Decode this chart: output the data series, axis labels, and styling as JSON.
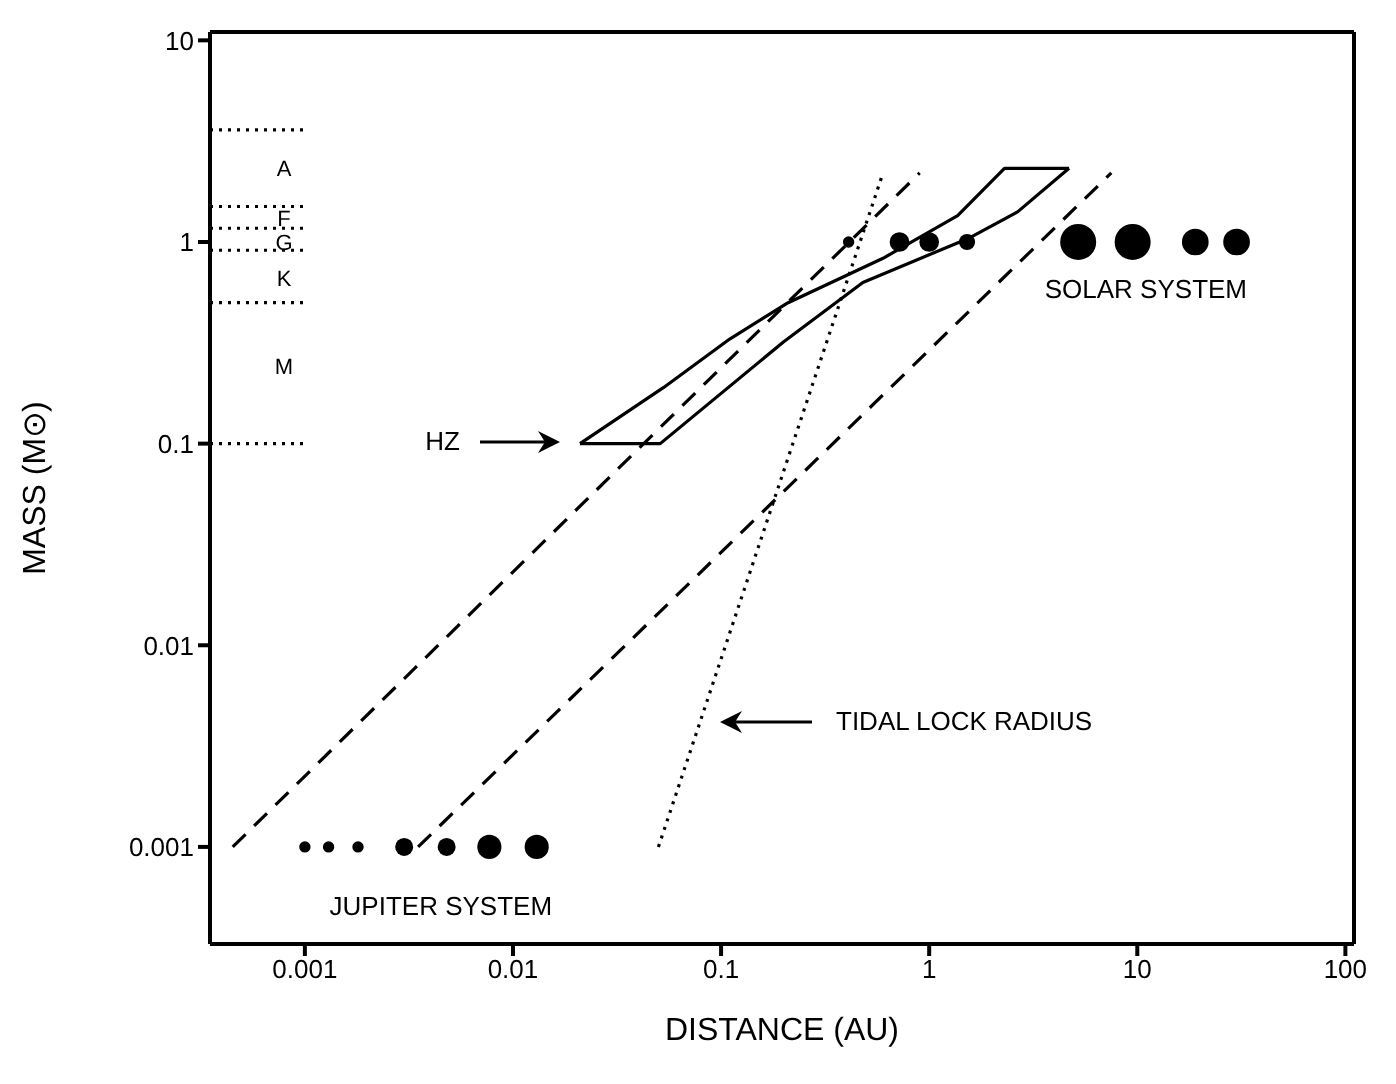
{
  "chart_data": {
    "type": "line",
    "xlabel": "DISTANCE (AU)",
    "ylabel": "MASS (M⊙)",
    "log": "xy",
    "grid": false,
    "xlim": [
      0.00035,
      110
    ],
    "ylim": [
      0.00033,
      11
    ],
    "xticks": [
      0.001,
      0.01,
      0.1,
      1,
      10,
      100
    ],
    "yticks": [
      0.001,
      0.01,
      0.1,
      1,
      10
    ],
    "series": [
      {
        "color": "#000000",
        "line_style": "solid",
        "x": [
          0.021,
          0.051,
          0.2,
          0.48,
          1.57,
          2.66,
          4.7
        ],
        "values": [
          0.1,
          0.1,
          0.32,
          0.63,
          1.05,
          1.41,
          2.32
        ]
      },
      {
        "color": "#000000",
        "line_style": "solid",
        "x": [
          0.021,
          0.053,
          0.11,
          0.21,
          0.6,
          1.37,
          2.3,
          4.7
        ],
        "values": [
          0.1,
          0.19,
          0.33,
          0.5,
          0.83,
          1.35,
          2.32,
          2.32
        ]
      },
      {
        "color": "#000000",
        "line_style": "dashed",
        "x": [
          0.00045,
          0.9
        ],
        "values": [
          0.001,
          2.2
        ]
      },
      {
        "color": "#000000",
        "line_style": "dashed",
        "x": [
          0.0035,
          7.5
        ],
        "values": [
          0.001,
          2.2
        ]
      },
      {
        "color": "#000000",
        "line_style": "dotted",
        "x": [
          0.05,
          0.6
        ],
        "values": [
          0.001,
          2.2
        ]
      },
      {
        "color": "#000000",
        "line_style": "dotted",
        "x": [
          0.00035,
          0.001
        ],
        "values": [
          3.6,
          3.6
        ]
      },
      {
        "color": "#000000",
        "line_style": "dotted",
        "x": [
          0.00035,
          0.001
        ],
        "values": [
          1.5,
          1.5
        ]
      },
      {
        "color": "#000000",
        "line_style": "dotted",
        "x": [
          0.00035,
          0.001
        ],
        "values": [
          1.17,
          1.17
        ]
      },
      {
        "color": "#000000",
        "line_style": "dotted",
        "x": [
          0.00035,
          0.001
        ],
        "values": [
          0.91,
          0.91
        ]
      },
      {
        "color": "#000000",
        "line_style": "dotted",
        "x": [
          0.00035,
          0.001
        ],
        "values": [
          0.5,
          0.5
        ]
      },
      {
        "color": "#000000",
        "line_style": "dotted",
        "x": [
          0.00035,
          0.001
        ],
        "values": [
          0.1,
          0.1
        ]
      },
      {
        "type": "bubble",
        "color": "#000000",
        "x": [
          0.41,
          0.72,
          1,
          1.52,
          5.2,
          9.5,
          19,
          30
        ],
        "values": [
          1,
          1,
          1,
          1,
          1,
          1,
          1,
          1
        ],
        "sizes": [
          0.1,
          0.3,
          0.3,
          0.2,
          1,
          1,
          0.55,
          0.55
        ]
      },
      {
        "type": "bubble",
        "color": "#000000",
        "x": [
          0.001,
          0.0013,
          0.0018,
          0.003,
          0.0048,
          0.0077,
          0.013
        ],
        "values": [
          0.001,
          0.001,
          0.001,
          0.001,
          0.001,
          0.001,
          0.001
        ],
        "sizes": [
          0.1,
          0.1,
          0.1,
          0.25,
          0.25,
          0.45,
          0.45
        ]
      }
    ],
    "annotations": [
      "HZ",
      "TIDAL LOCK RADIUS",
      {
        "text": "SOLAR SYSTEM",
        "x": 11,
        "y": 1
      },
      {
        "text": "JUPITER SYSTEM",
        "x": 0.0045,
        "y": 0.001
      },
      "A",
      "F",
      "G",
      "K",
      "M"
    ]
  }
}
